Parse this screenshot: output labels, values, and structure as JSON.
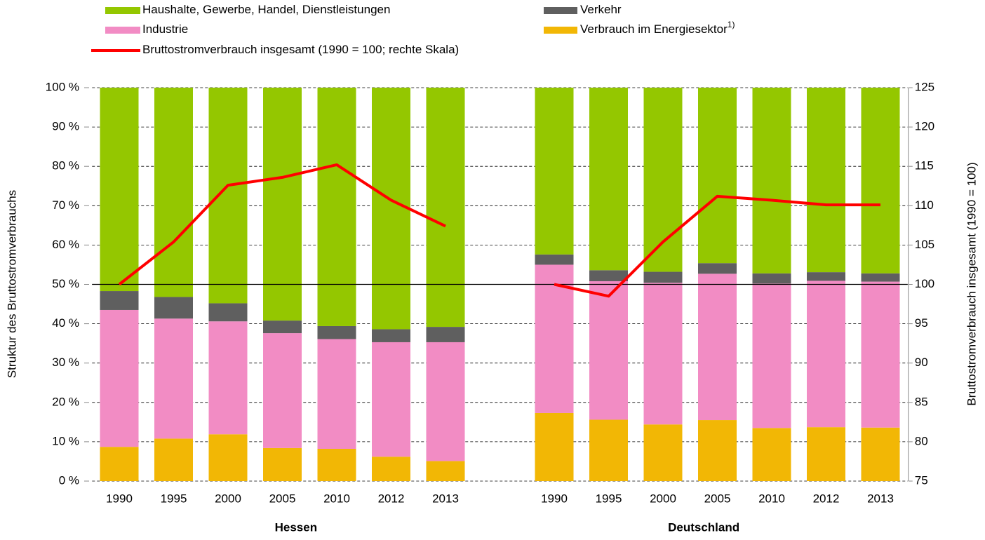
{
  "chart_data": {
    "type": "bar",
    "stacked": true,
    "categories": [
      "1990",
      "1995",
      "2000",
      "2005",
      "2010",
      "2012",
      "2013",
      null,
      "1990",
      "1995",
      "2000",
      "2005",
      "2010",
      "2012",
      "2013"
    ],
    "groups": [
      {
        "label": "Hessen"
      },
      {
        "label": "Deutschland"
      }
    ],
    "ylabel": "Struktur des Bruttostromverbrauchs",
    "y2label": "Bruttostromverbrauch  insgesamt (1990 = 100)",
    "ylim": [
      0,
      100
    ],
    "yticks": [
      {
        "value": 0,
        "label": "0 %"
      },
      {
        "value": 10,
        "label": "10 %"
      },
      {
        "value": 20,
        "label": "20 %"
      },
      {
        "value": 30,
        "label": "30 %"
      },
      {
        "value": 40,
        "label": "40 %"
      },
      {
        "value": 50,
        "label": "50 %"
      },
      {
        "value": 60,
        "label": "60 %"
      },
      {
        "value": 70,
        "label": "70 %"
      },
      {
        "value": 80,
        "label": "80 %"
      },
      {
        "value": 90,
        "label": "90 %"
      },
      {
        "value": 100,
        "label": "100 %"
      }
    ],
    "y2lim": [
      75,
      125
    ],
    "y2ticks": [
      75,
      80,
      85,
      90,
      95,
      100,
      105,
      110,
      115,
      120,
      125
    ],
    "y2_reference": 100,
    "grid": true,
    "legend": "top",
    "series": [
      {
        "name": "Verbrauch im Energiesektor",
        "footnote": "1)",
        "color": "#f2b705",
        "values": [
          8.7,
          10.8,
          11.9,
          8.4,
          8.2,
          6.2,
          5.1,
          null,
          17.3,
          15.6,
          14.4,
          15.5,
          13.5,
          13.7,
          13.6
        ]
      },
      {
        "name": "Industrie",
        "color": "#f28cc4",
        "values": [
          34.8,
          30.5,
          28.7,
          29.2,
          27.9,
          29.1,
          30.2,
          null,
          37.7,
          35.2,
          36.0,
          37.2,
          36.7,
          37.2,
          37.1
        ]
      },
      {
        "name": "Verkehr",
        "color": "#5f5f5f",
        "values": [
          4.8,
          5.5,
          4.6,
          3.2,
          3.3,
          3.3,
          3.9,
          null,
          2.6,
          2.8,
          2.8,
          2.7,
          2.6,
          2.2,
          2.1
        ]
      },
      {
        "name": "Haushalte, Gewerbe, Handel, Dienstleistungen",
        "color": "#94c700",
        "values": [
          51.7,
          53.2,
          54.8,
          59.2,
          60.6,
          61.4,
          60.8,
          null,
          42.4,
          46.4,
          46.8,
          44.6,
          47.2,
          46.9,
          47.2
        ]
      },
      {
        "name": "Bruttostromverbrauch insgesamt (1990 = 100; rechte Skala)",
        "type": "line",
        "axis": "y2",
        "color": "#ff0000",
        "values": [
          100,
          105.4,
          112.6,
          113.6,
          115.2,
          110.7,
          107.4,
          null,
          100,
          98.5,
          105.4,
          111.2,
          110.7,
          110.1,
          110.1
        ]
      }
    ]
  }
}
